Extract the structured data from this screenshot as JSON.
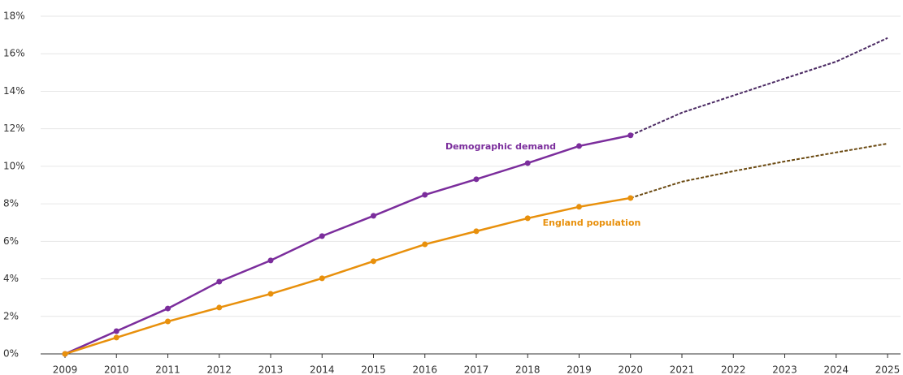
{
  "chart_data": {
    "type": "line",
    "categories": [
      "2009",
      "2010",
      "2011",
      "2012",
      "2013",
      "2014",
      "2015",
      "2016",
      "2017",
      "2018",
      "2019",
      "2020",
      "2021",
      "2022",
      "2023",
      "2024",
      "2025"
    ],
    "series": [
      {
        "name": "Demographic demand",
        "color": "#7b2d9c",
        "projected_color": "#4b2a63",
        "values": [
          0,
          1.21,
          2.42,
          3.85,
          4.98,
          6.28,
          7.36,
          8.48,
          9.31,
          10.17,
          11.08,
          11.65,
          null,
          null,
          null,
          null,
          null
        ],
        "projected_values": [
          null,
          null,
          null,
          null,
          null,
          null,
          null,
          null,
          null,
          null,
          null,
          11.65,
          12.86,
          13.77,
          14.68,
          15.58,
          16.84
        ]
      },
      {
        "name": "England population",
        "color": "#e8900c",
        "projected_color": "#6b4a12",
        "values": [
          0,
          0.87,
          1.73,
          2.47,
          3.2,
          4.03,
          4.94,
          5.84,
          6.54,
          7.23,
          7.84,
          8.31,
          null,
          null,
          null,
          null,
          null
        ],
        "projected_values": [
          null,
          null,
          null,
          null,
          null,
          null,
          null,
          null,
          null,
          null,
          null,
          8.31,
          9.18,
          9.74,
          10.26,
          10.74,
          11.21
        ]
      }
    ],
    "ylim": [
      0,
      18
    ],
    "yticks": [
      {
        "value": 0,
        "label": "0%"
      },
      {
        "value": 2,
        "label": "2%"
      },
      {
        "value": 4,
        "label": "4%"
      },
      {
        "value": 6,
        "label": "6%"
      },
      {
        "value": 8,
        "label": "8%"
      },
      {
        "value": 10,
        "label": "10%"
      },
      {
        "value": 12,
        "label": "12%"
      },
      {
        "value": 14,
        "label": "14%"
      },
      {
        "value": 16,
        "label": "16%"
      },
      {
        "value": 18,
        "label": "18%"
      }
    ],
    "grid": true
  }
}
